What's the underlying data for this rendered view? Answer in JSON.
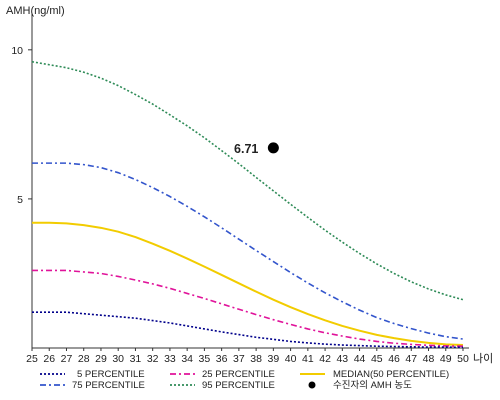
{
  "chart_data": {
    "type": "line",
    "ylabel": "AMH(ng/ml)",
    "xlabel": "나이",
    "xlim": [
      25,
      50
    ],
    "ylim": [
      0,
      11
    ],
    "x_ticks": [
      25,
      26,
      27,
      28,
      29,
      30,
      31,
      32,
      33,
      34,
      35,
      36,
      37,
      38,
      39,
      40,
      41,
      42,
      43,
      44,
      45,
      46,
      47,
      48,
      49,
      50
    ],
    "y_ticks": [
      5,
      10
    ],
    "grid": false,
    "legend_position": "bottom",
    "x": [
      25,
      26,
      27,
      28,
      29,
      30,
      31,
      32,
      33,
      34,
      35,
      36,
      37,
      38,
      39,
      40,
      41,
      42,
      43,
      44,
      45,
      46,
      47,
      48,
      49,
      50
    ],
    "series": [
      {
        "name": "5 PERCENTILE",
        "color": "#00008B",
        "dash": "2,2",
        "values": [
          1.2,
          1.2,
          1.2,
          1.15,
          1.1,
          1.05,
          1.0,
          0.92,
          0.84,
          0.74,
          0.64,
          0.54,
          0.45,
          0.36,
          0.29,
          0.22,
          0.17,
          0.13,
          0.1,
          0.08,
          0.06,
          0.05,
          0.04,
          0.03,
          0.03,
          0.02
        ]
      },
      {
        "name": "25 PERCENTILE",
        "color": "#E0139A",
        "dash": "6,3,2,3",
        "values": [
          2.6,
          2.6,
          2.6,
          2.55,
          2.5,
          2.4,
          2.28,
          2.15,
          2.0,
          1.83,
          1.66,
          1.48,
          1.3,
          1.12,
          0.95,
          0.79,
          0.64,
          0.51,
          0.4,
          0.3,
          0.22,
          0.16,
          0.12,
          0.09,
          0.07,
          0.06
        ]
      },
      {
        "name": "75 PERCENTILE",
        "color": "#3355CC",
        "dash": "6,3,2,3",
        "values": [
          6.2,
          6.2,
          6.2,
          6.15,
          6.05,
          5.88,
          5.65,
          5.38,
          5.08,
          4.75,
          4.4,
          4.03,
          3.65,
          3.27,
          2.9,
          2.53,
          2.18,
          1.85,
          1.55,
          1.27,
          1.02,
          0.82,
          0.65,
          0.5,
          0.38,
          0.3
        ]
      },
      {
        "name": "95 PERCENTILE",
        "color": "#2E8B57",
        "dash": "2,2",
        "values": [
          9.6,
          9.5,
          9.4,
          9.25,
          9.05,
          8.8,
          8.5,
          8.18,
          7.82,
          7.45,
          7.05,
          6.62,
          6.18,
          5.72,
          5.27,
          4.82,
          4.38,
          3.95,
          3.55,
          3.17,
          2.82,
          2.5,
          2.22,
          1.98,
          1.78,
          1.62
        ]
      },
      {
        "name": "MEDIAN(50 PERCENTILE)",
        "color": "#F2CC00",
        "dash": "",
        "values": [
          4.2,
          4.2,
          4.18,
          4.12,
          4.03,
          3.9,
          3.72,
          3.5,
          3.26,
          3.0,
          2.73,
          2.45,
          2.17,
          1.89,
          1.62,
          1.37,
          1.14,
          0.93,
          0.74,
          0.58,
          0.44,
          0.33,
          0.24,
          0.17,
          0.12,
          0.1
        ]
      }
    ],
    "marker": {
      "name": "수진자의 AMH 농도",
      "x": 39,
      "y": 6.71,
      "label": "6.71",
      "color": "#000000"
    }
  }
}
